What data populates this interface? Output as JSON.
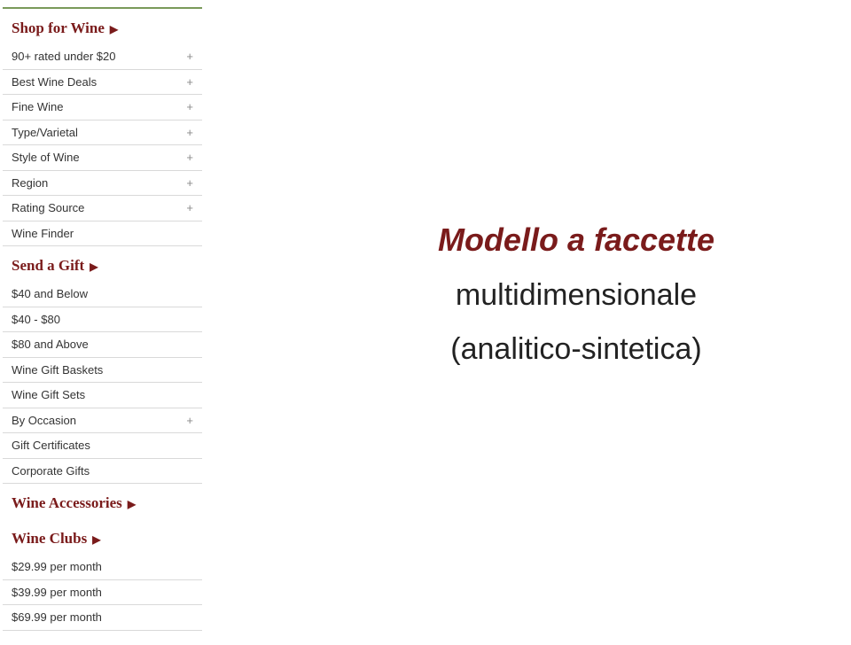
{
  "sidebar": {
    "sections": [
      {
        "header": "Shop for Wine",
        "items": [
          {
            "label": "90+ rated under $20",
            "expandable": true
          },
          {
            "label": "Best Wine Deals",
            "expandable": true
          },
          {
            "label": "Fine Wine",
            "expandable": true
          },
          {
            "label": "Type/Varietal",
            "expandable": true
          },
          {
            "label": "Style of Wine",
            "expandable": true
          },
          {
            "label": "Region",
            "expandable": true
          },
          {
            "label": "Rating Source",
            "expandable": true
          },
          {
            "label": "Wine Finder",
            "expandable": false
          }
        ]
      },
      {
        "header": "Send a Gift",
        "items": [
          {
            "label": "$40 and Below",
            "expandable": false
          },
          {
            "label": "$40 - $80",
            "expandable": false
          },
          {
            "label": "$80 and Above",
            "expandable": false
          },
          {
            "label": "Wine Gift Baskets",
            "expandable": false
          },
          {
            "label": "Wine Gift Sets",
            "expandable": false
          },
          {
            "label": "By Occasion",
            "expandable": true
          },
          {
            "label": "Gift Certificates",
            "expandable": false
          },
          {
            "label": "Corporate Gifts",
            "expandable": false
          }
        ]
      },
      {
        "header": "Wine Accessories",
        "items": []
      },
      {
        "header": "Wine Clubs",
        "items": [
          {
            "label": "$29.99 per month",
            "expandable": false
          },
          {
            "label": "$39.99 per month",
            "expandable": false
          },
          {
            "label": "$69.99 per month",
            "expandable": false
          }
        ]
      }
    ]
  },
  "content": {
    "title": "Modello a faccette",
    "subtitle1": "multidimensionale",
    "subtitle2": "(analitico-sintetica)"
  },
  "colors": {
    "brand": "#7a1b1b",
    "top_border": "#7a9a5a",
    "item_divider": "#d9d9d9",
    "item_text": "#333333",
    "plus": "#8a8a8a",
    "bg": "#ffffff"
  },
  "icons": {
    "chevron_right": "▶",
    "expand": "+"
  }
}
